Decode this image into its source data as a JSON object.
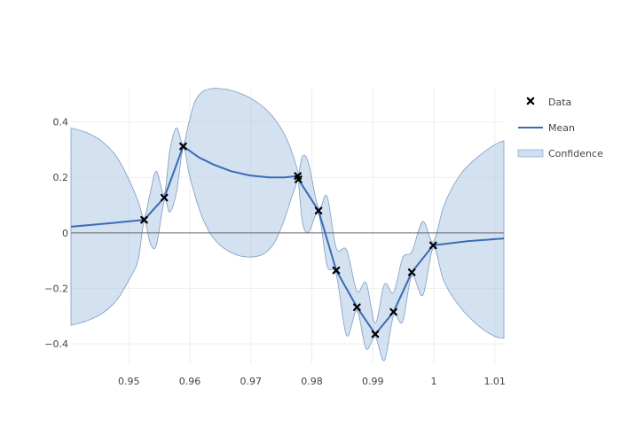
{
  "chart_data": {
    "type": "line",
    "title": "",
    "xlabel": "",
    "ylabel": "",
    "xlim": [
      0.9405,
      1.0115
    ],
    "ylim": [
      -0.47,
      0.52
    ],
    "grid": true,
    "zero_line": true,
    "legend_position": "top-right",
    "x_ticks": [
      {
        "value": 0.95,
        "label": "0.95"
      },
      {
        "value": 0.96,
        "label": "0.96"
      },
      {
        "value": 0.97,
        "label": "0.97"
      },
      {
        "value": 0.98,
        "label": "0.98"
      },
      {
        "value": 0.99,
        "label": "0.99"
      },
      {
        "value": 1.0,
        "label": "1"
      },
      {
        "value": 1.01,
        "label": "1.01"
      }
    ],
    "y_ticks": [
      {
        "value": 0.4,
        "label": "0.4"
      },
      {
        "value": 0.2,
        "label": "0.2"
      },
      {
        "value": 0.0,
        "label": "0"
      },
      {
        "value": -0.2,
        "label": "−0.2"
      },
      {
        "value": -0.4,
        "label": "−0.4"
      }
    ],
    "series": [
      {
        "name": "Data",
        "kind": "scatter",
        "marker": "x",
        "color": "#000000",
        "x": [
          0.9525,
          0.9558,
          0.9589,
          0.9777,
          0.9778,
          0.9811,
          0.984,
          0.9874,
          0.9904,
          0.9934,
          0.9964,
          0.9999
        ],
        "y": [
          0.047,
          0.127,
          0.312,
          0.205,
          0.193,
          0.08,
          -0.135,
          -0.268,
          -0.365,
          -0.285,
          -0.142,
          -0.045
        ]
      },
      {
        "name": "Mean",
        "kind": "line",
        "color": "#3a6cb4",
        "x": [
          0.9405,
          0.947,
          0.9525,
          0.9558,
          0.9589,
          0.9615,
          0.964,
          0.9668,
          0.9698,
          0.973,
          0.9755,
          0.9777,
          0.9778,
          0.9811,
          0.984,
          0.9874,
          0.9904,
          0.9934,
          0.9964,
          0.9999,
          1.0055,
          1.0115
        ],
        "y": [
          0.022,
          0.035,
          0.047,
          0.127,
          0.312,
          0.272,
          0.245,
          0.222,
          0.207,
          0.2,
          0.2,
          0.205,
          0.193,
          0.08,
          -0.135,
          -0.268,
          -0.365,
          -0.285,
          -0.142,
          -0.045,
          -0.03,
          -0.02
        ]
      },
      {
        "name": "Confidence",
        "kind": "band",
        "color": "#b0c8e4",
        "x": [
          0.9405,
          0.943,
          0.9455,
          0.948,
          0.95,
          0.9515,
          0.9525,
          0.9535,
          0.9545,
          0.9558,
          0.9567,
          0.9578,
          0.9589,
          0.9598,
          0.9608,
          0.962,
          0.9635,
          0.965,
          0.9665,
          0.968,
          0.9695,
          0.971,
          0.9725,
          0.974,
          0.9755,
          0.9765,
          0.9777,
          0.9778,
          0.9785,
          0.9795,
          0.9811,
          0.9825,
          0.984,
          0.9857,
          0.9874,
          0.9889,
          0.9904,
          0.9919,
          0.9934,
          0.9949,
          0.9964,
          0.9982,
          0.9999,
          1.0015,
          1.003,
          1.005,
          1.0075,
          1.01,
          1.0115
        ],
        "upper": [
          0.378,
          0.362,
          0.331,
          0.274,
          0.192,
          0.115,
          0.055,
          0.145,
          0.222,
          0.14,
          0.295,
          0.378,
          0.318,
          0.395,
          0.471,
          0.508,
          0.52,
          0.52,
          0.515,
          0.505,
          0.491,
          0.471,
          0.445,
          0.408,
          0.356,
          0.305,
          0.222,
          0.206,
          0.278,
          0.247,
          0.09,
          0.132,
          -0.055,
          -0.062,
          -0.21,
          -0.18,
          -0.325,
          -0.185,
          -0.215,
          -0.09,
          -0.068,
          0.041,
          -0.033,
          0.088,
          0.162,
          0.228,
          0.279,
          0.318,
          0.332
        ],
        "lower": [
          -0.333,
          -0.318,
          -0.292,
          -0.243,
          -0.17,
          -0.1,
          0.04,
          -0.038,
          -0.045,
          0.115,
          0.075,
          0.145,
          0.305,
          0.22,
          0.138,
          0.058,
          -0.008,
          -0.045,
          -0.068,
          -0.082,
          -0.087,
          -0.085,
          -0.07,
          -0.03,
          0.048,
          0.115,
          0.19,
          0.185,
          0.035,
          0.003,
          0.068,
          -0.118,
          -0.15,
          -0.37,
          -0.28,
          -0.418,
          -0.375,
          -0.46,
          -0.3,
          -0.32,
          -0.155,
          -0.225,
          -0.055,
          -0.165,
          -0.228,
          -0.285,
          -0.338,
          -0.373,
          -0.38
        ]
      }
    ]
  }
}
